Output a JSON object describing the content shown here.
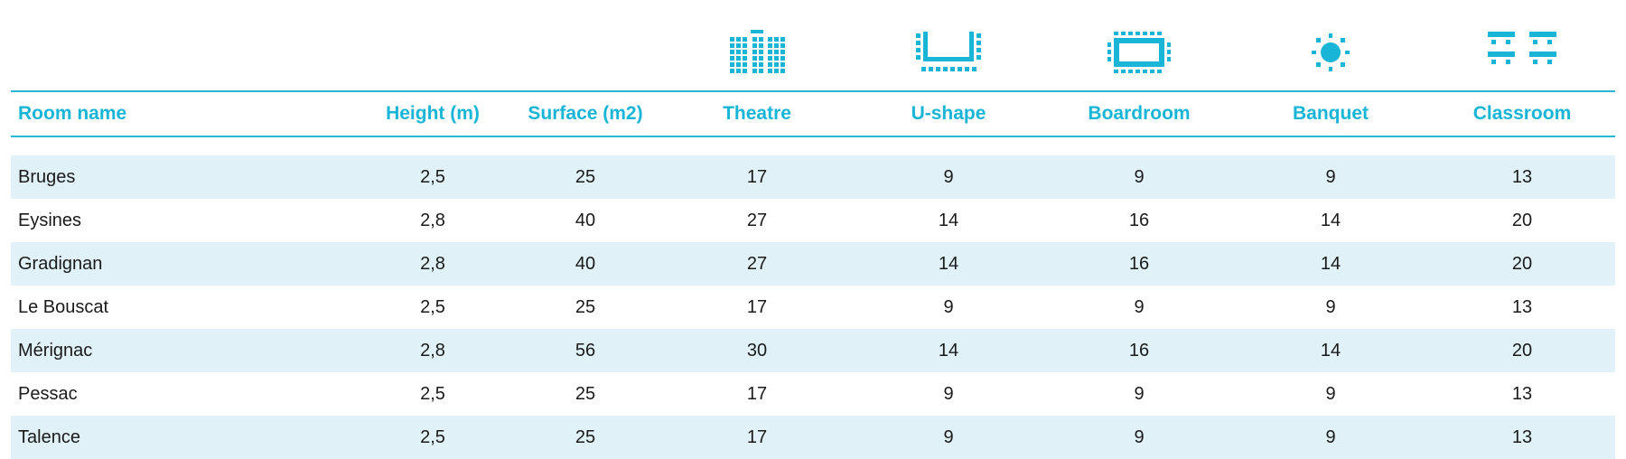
{
  "icons": {
    "theatre": "theatre-layout-icon",
    "ushape": "u-shape-layout-icon",
    "boardroom": "boardroom-layout-icon",
    "banquet": "banquet-layout-icon",
    "classroom": "classroom-layout-icon",
    "color": "#19b5d6"
  },
  "table": {
    "headers": {
      "room_name": "Room name",
      "height": "Height (m)",
      "surface": "Surface (m2)",
      "theatre": "Theatre",
      "ushape": "U-shape",
      "boardroom": "Boardroom",
      "banquet": "Banquet",
      "classroom": "Classroom"
    },
    "rows": [
      {
        "name": "Bruges",
        "height": "2,5",
        "surface": "25",
        "theatre": "17",
        "ushape": "9",
        "boardroom": "9",
        "banquet": "9",
        "classroom": "13"
      },
      {
        "name": "Eysines",
        "height": "2,8",
        "surface": "40",
        "theatre": "27",
        "ushape": "14",
        "boardroom": "16",
        "banquet": "14",
        "classroom": "20"
      },
      {
        "name": "Gradignan",
        "height": "2,8",
        "surface": "40",
        "theatre": "27",
        "ushape": "14",
        "boardroom": "16",
        "banquet": "14",
        "classroom": "20"
      },
      {
        "name": "Le Bouscat",
        "height": "2,5",
        "surface": "25",
        "theatre": "17",
        "ushape": "9",
        "boardroom": "9",
        "banquet": "9",
        "classroom": "13"
      },
      {
        "name": "Mérignac",
        "height": "2,8",
        "surface": "56",
        "theatre": "30",
        "ushape": "14",
        "boardroom": "16",
        "banquet": "14",
        "classroom": "20"
      },
      {
        "name": "Pessac",
        "height": "2,5",
        "surface": "25",
        "theatre": "17",
        "ushape": "9",
        "boardroom": "9",
        "banquet": "9",
        "classroom": "13"
      },
      {
        "name": "Talence",
        "height": "2,5",
        "surface": "25",
        "theatre": "17",
        "ushape": "9",
        "boardroom": "9",
        "banquet": "9",
        "classroom": "13"
      }
    ],
    "header_color": "#19b5d6",
    "stripe_color": "#e0f1f8"
  }
}
